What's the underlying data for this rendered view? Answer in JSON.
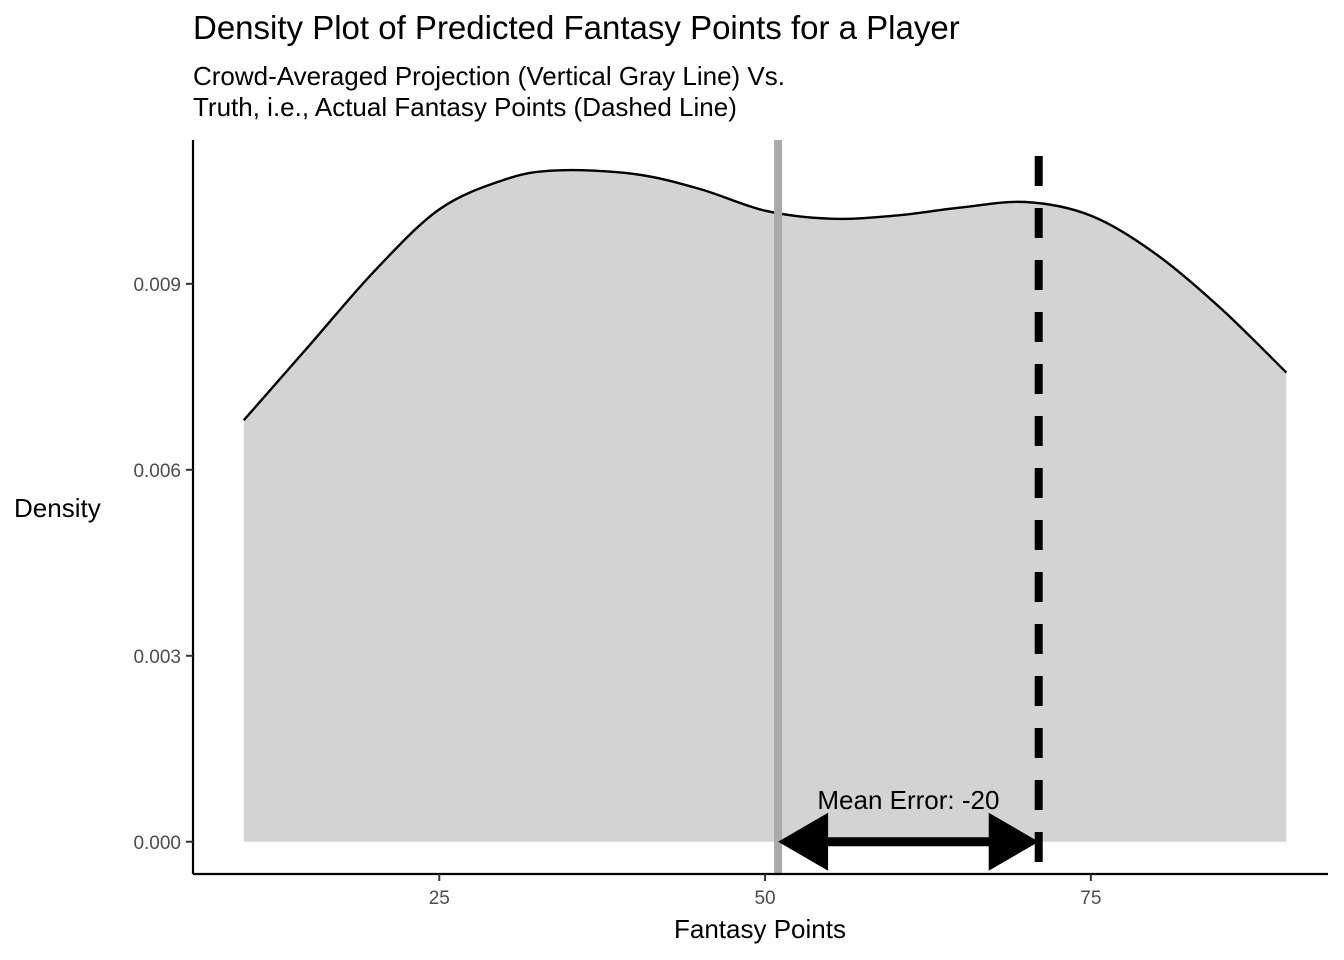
{
  "chart_data": {
    "type": "area",
    "title": "Density Plot of Predicted Fantasy Points for a Player",
    "subtitle_lines": [
      "Crowd-Averaged Projection (Vertical Gray Line) Vs.",
      "Truth, i.e., Actual Fantasy Points (Dashed Line)"
    ],
    "xlabel": "Fantasy Points",
    "ylabel": "Density",
    "xlim": [
      6.1,
      93.2
    ],
    "ylim": [
      -0.00052,
      0.01132
    ],
    "x_ticks": [
      25,
      50,
      75
    ],
    "x_tick_labels": [
      "25",
      "50",
      "75"
    ],
    "y_ticks": [
      0.0,
      0.003,
      0.006,
      0.009
    ],
    "y_tick_labels": [
      "0.000",
      "0.003",
      "0.006",
      "0.009"
    ],
    "grid": false,
    "density_curve": {
      "x": [
        10,
        15,
        20,
        25,
        30,
        34,
        40,
        45,
        50,
        55,
        60,
        65,
        70,
        75,
        80,
        85,
        90
      ],
      "y": [
        0.0068,
        0.008,
        0.0092,
        0.0102,
        0.01068,
        0.01083,
        0.01077,
        0.01053,
        0.01018,
        0.01005,
        0.0101,
        0.01023,
        0.01032,
        0.0101,
        0.00948,
        0.0086,
        0.00757
      ]
    },
    "crowd_projection_line": {
      "x": 51,
      "label": "Vertical Gray Line",
      "color": "#aaaaaa"
    },
    "actual_points_line": {
      "x": 71,
      "style": "dashed",
      "color": "#000000"
    },
    "annotation": {
      "text": "Mean Error: -20",
      "arrow_from": 51,
      "arrow_to": 71,
      "arrow_y": 0.0
    },
    "colors": {
      "fill": "#d3d3d3",
      "curve": "#000000",
      "axis": "#000000"
    }
  }
}
